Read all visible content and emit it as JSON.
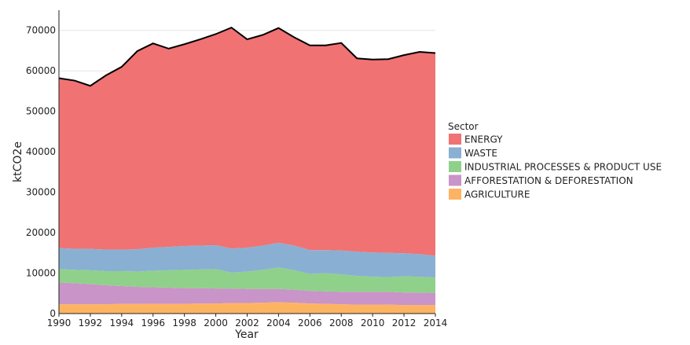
{
  "chart_data": {
    "type": "area",
    "stacked": true,
    "xlabel": "Year",
    "ylabel": "ktCO2e",
    "xlim": [
      1990,
      2014
    ],
    "ylim": [
      0,
      75000
    ],
    "x_ticks": [
      "1990",
      "1992",
      "1994",
      "1996",
      "1998",
      "2000",
      "2002",
      "2004",
      "2006",
      "2008",
      "2010",
      "2012",
      "2014"
    ],
    "y_ticks": [
      "0",
      "10000",
      "20000",
      "30000",
      "40000",
      "50000",
      "60000",
      "70000"
    ],
    "grid": true,
    "legend_title": "Sector",
    "legend_position": "right",
    "x": [
      1990,
      1991,
      1992,
      1993,
      1994,
      1995,
      1996,
      1997,
      1998,
      1999,
      2000,
      2001,
      2002,
      2003,
      2004,
      2005,
      2006,
      2007,
      2008,
      2009,
      2010,
      2011,
      2012,
      2013,
      2014
    ],
    "series": [
      {
        "name": "AGRICULTURE",
        "color": "#fdb462",
        "values": [
          2300,
          2300,
          2300,
          2300,
          2400,
          2400,
          2400,
          2400,
          2400,
          2500,
          2500,
          2600,
          2600,
          2700,
          2800,
          2700,
          2500,
          2400,
          2300,
          2200,
          2200,
          2200,
          2100,
          2100,
          2100
        ]
      },
      {
        "name": "AFFORESTATION & DEFORESTATION",
        "color": "#c994c7",
        "values": [
          5400,
          5200,
          5000,
          4700,
          4400,
          4200,
          4100,
          4000,
          3900,
          3800,
          3700,
          3600,
          3500,
          3400,
          3300,
          3200,
          3100,
          3100,
          3100,
          3200,
          3200,
          3200,
          3100,
          3100,
          3000
        ]
      },
      {
        "name": "INDUSTRIAL PROCESSES & PRODUCT USE",
        "color": "#8fd18a",
        "values": [
          3300,
          3300,
          3400,
          3500,
          3700,
          3800,
          4100,
          4300,
          4500,
          4600,
          4800,
          3900,
          4300,
          4700,
          5300,
          4800,
          4200,
          4500,
          4300,
          3900,
          3700,
          3600,
          4000,
          3900,
          3800
        ]
      },
      {
        "name": "WASTE",
        "color": "#89b0d3",
        "values": [
          5200,
          5200,
          5300,
          5300,
          5300,
          5500,
          5700,
          5800,
          5900,
          5900,
          5900,
          6000,
          5900,
          6000,
          6100,
          6100,
          5900,
          5700,
          5900,
          6000,
          6000,
          6000,
          5700,
          5600,
          5400
        ]
      },
      {
        "name": "ENERGY",
        "color": "#f07273",
        "values": [
          42000,
          41600,
          40300,
          43100,
          45200,
          49000,
          50500,
          49000,
          49900,
          51000,
          52200,
          54600,
          51500,
          52100,
          53100,
          51500,
          50600,
          50600,
          51300,
          47800,
          47700,
          47900,
          49000,
          50000,
          50100
        ]
      }
    ],
    "total_line_color": "#000000"
  }
}
